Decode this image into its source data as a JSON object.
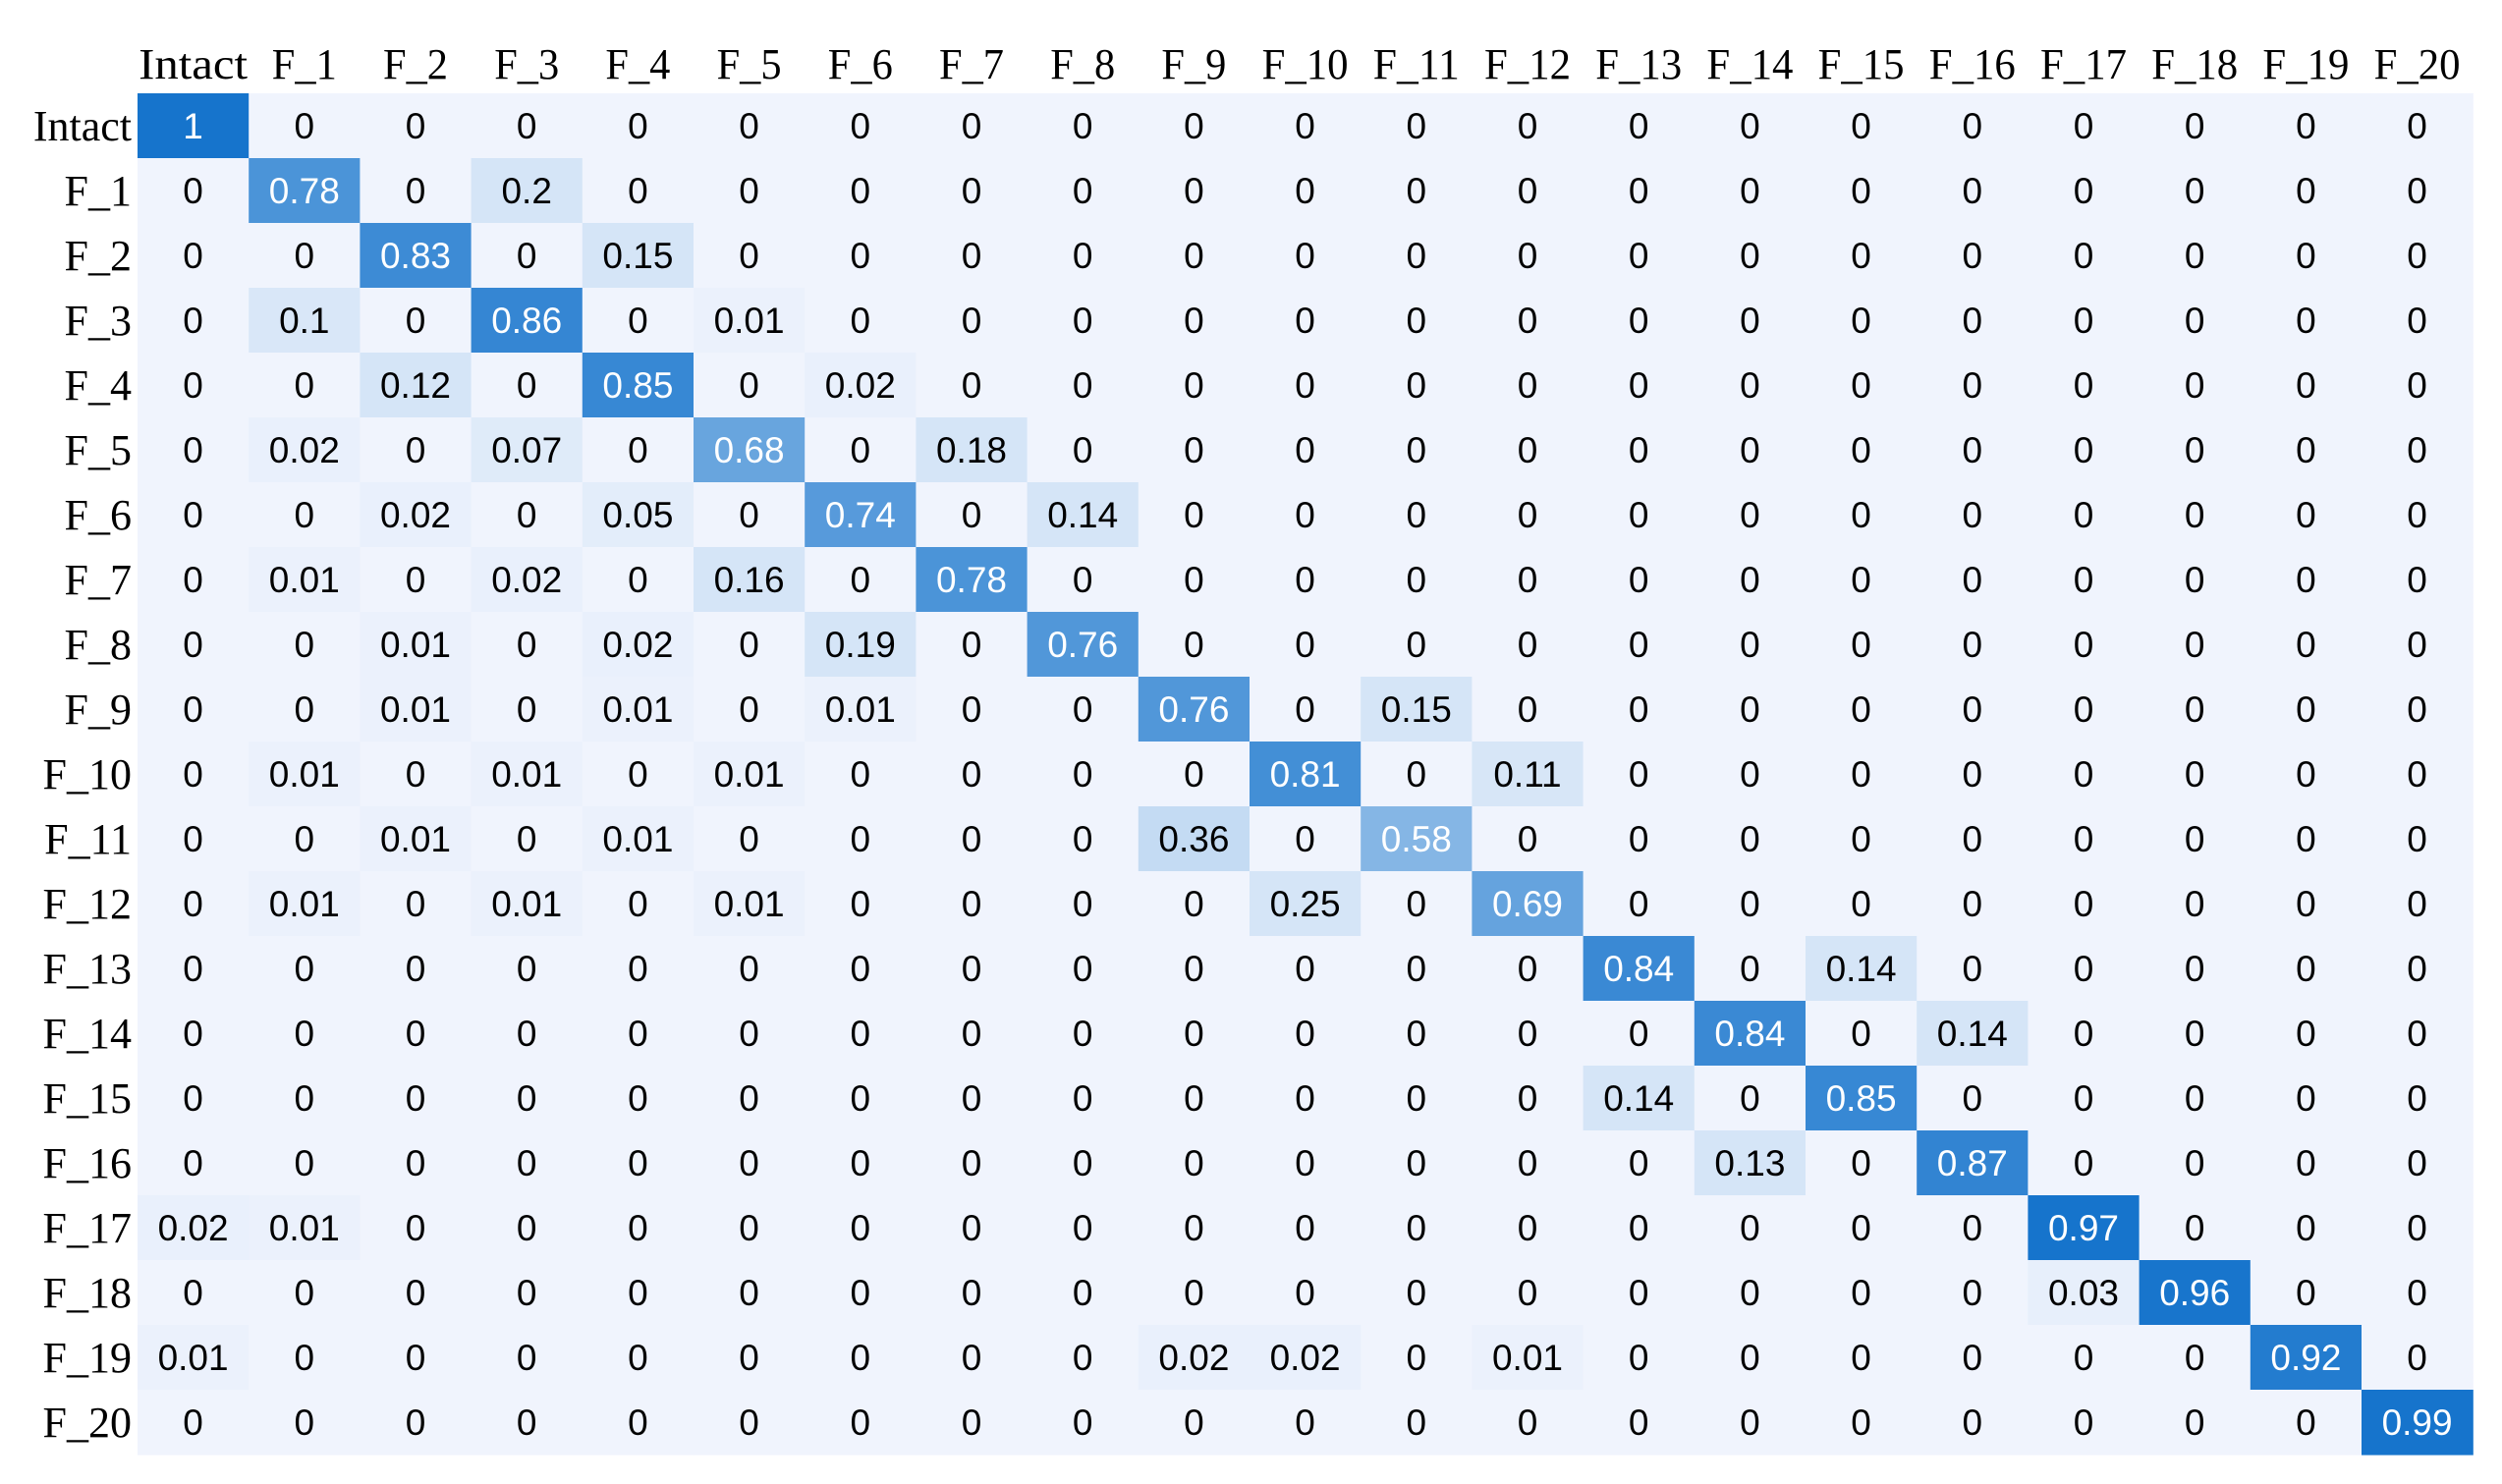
{
  "chart_data": {
    "type": "heatmap",
    "title": "",
    "xlabel": "",
    "ylabel": "",
    "row_labels": [
      "Intact",
      "F_1",
      "F_2",
      "F_3",
      "F_4",
      "F_5",
      "F_6",
      "F_7",
      "F_8",
      "F_9",
      "F_10",
      "F_11",
      "F_12",
      "F_13",
      "F_14",
      "F_15",
      "F_16",
      "F_17",
      "F_18",
      "F_19",
      "F_20"
    ],
    "col_labels": [
      "Intact",
      "F_1",
      "F_2",
      "F_3",
      "F_4",
      "F_5",
      "F_6",
      "F_7",
      "F_8",
      "F_9",
      "F_10",
      "F_11",
      "F_12",
      "F_13",
      "F_14",
      "F_15",
      "F_16",
      "F_17",
      "F_18",
      "F_19",
      "F_20"
    ],
    "values": [
      [
        1,
        0,
        0,
        0,
        0,
        0,
        0,
        0,
        0,
        0,
        0,
        0,
        0,
        0,
        0,
        0,
        0,
        0,
        0,
        0,
        0
      ],
      [
        0,
        0.78,
        0,
        0.2,
        0,
        0,
        0,
        0,
        0,
        0,
        0,
        0,
        0,
        0,
        0,
        0,
        0,
        0,
        0,
        0,
        0
      ],
      [
        0,
        0,
        0.83,
        0,
        0.15,
        0,
        0,
        0,
        0,
        0,
        0,
        0,
        0,
        0,
        0,
        0,
        0,
        0,
        0,
        0,
        0
      ],
      [
        0,
        0.1,
        0,
        0.86,
        0,
        0.01,
        0,
        0,
        0,
        0,
        0,
        0,
        0,
        0,
        0,
        0,
        0,
        0,
        0,
        0,
        0
      ],
      [
        0,
        0,
        0.12,
        0,
        0.85,
        0,
        0.02,
        0,
        0,
        0,
        0,
        0,
        0,
        0,
        0,
        0,
        0,
        0,
        0,
        0,
        0
      ],
      [
        0,
        0.02,
        0,
        0.07,
        0,
        0.68,
        0,
        0.18,
        0,
        0,
        0,
        0,
        0,
        0,
        0,
        0,
        0,
        0,
        0,
        0,
        0
      ],
      [
        0,
        0,
        0.02,
        0,
        0.05,
        0,
        0.74,
        0,
        0.14,
        0,
        0,
        0,
        0,
        0,
        0,
        0,
        0,
        0,
        0,
        0,
        0
      ],
      [
        0,
        0.01,
        0,
        0.02,
        0,
        0.16,
        0,
        0.78,
        0,
        0,
        0,
        0,
        0,
        0,
        0,
        0,
        0,
        0,
        0,
        0,
        0
      ],
      [
        0,
        0,
        0.01,
        0,
        0.02,
        0,
        0.19,
        0,
        0.76,
        0,
        0,
        0,
        0,
        0,
        0,
        0,
        0,
        0,
        0,
        0,
        0
      ],
      [
        0,
        0,
        0.01,
        0,
        0.01,
        0,
        0.01,
        0,
        0,
        0.76,
        0,
        0.15,
        0,
        0,
        0,
        0,
        0,
        0,
        0,
        0,
        0
      ],
      [
        0,
        0.01,
        0,
        0.01,
        0,
        0.01,
        0,
        0,
        0,
        0,
        0.81,
        0,
        0.11,
        0,
        0,
        0,
        0,
        0,
        0,
        0,
        0
      ],
      [
        0,
        0,
        0.01,
        0,
        0.01,
        0,
        0,
        0,
        0,
        0.36,
        0,
        0.58,
        0,
        0,
        0,
        0,
        0,
        0,
        0,
        0,
        0
      ],
      [
        0,
        0.01,
        0,
        0.01,
        0,
        0.01,
        0,
        0,
        0,
        0,
        0.25,
        0,
        0.69,
        0,
        0,
        0,
        0,
        0,
        0,
        0,
        0
      ],
      [
        0,
        0,
        0,
        0,
        0,
        0,
        0,
        0,
        0,
        0,
        0,
        0,
        0,
        0.84,
        0,
        0.14,
        0,
        0,
        0,
        0,
        0
      ],
      [
        0,
        0,
        0,
        0,
        0,
        0,
        0,
        0,
        0,
        0,
        0,
        0,
        0,
        0,
        0.84,
        0,
        0.14,
        0,
        0,
        0,
        0
      ],
      [
        0,
        0,
        0,
        0,
        0,
        0,
        0,
        0,
        0,
        0,
        0,
        0,
        0,
        0.14,
        0,
        0.85,
        0,
        0,
        0,
        0,
        0
      ],
      [
        0,
        0,
        0,
        0,
        0,
        0,
        0,
        0,
        0,
        0,
        0,
        0,
        0,
        0,
        0.13,
        0,
        0.87,
        0,
        0,
        0,
        0
      ],
      [
        0.02,
        0.01,
        0,
        0,
        0,
        0,
        0,
        0,
        0,
        0,
        0,
        0,
        0,
        0,
        0,
        0,
        0,
        0.97,
        0,
        0,
        0
      ],
      [
        0,
        0,
        0,
        0,
        0,
        0,
        0,
        0,
        0,
        0,
        0,
        0,
        0,
        0,
        0,
        0,
        0,
        0.03,
        0.96,
        0,
        0
      ],
      [
        0.01,
        0,
        0,
        0,
        0,
        0,
        0,
        0,
        0,
        0.02,
        0.02,
        0,
        0.01,
        0,
        0,
        0,
        0,
        0,
        0,
        0.92,
        0
      ],
      [
        0,
        0,
        0,
        0,
        0,
        0,
        0,
        0,
        0,
        0,
        0,
        0,
        0,
        0,
        0,
        0,
        0,
        0,
        0,
        0,
        0.99
      ]
    ],
    "color_low": "#f0f4fd",
    "color_light": "#d5e5f7",
    "color_high": "#1674cc",
    "text_dark": "#000000",
    "text_light": "#ffffff",
    "legend": "none",
    "grid": false
  }
}
